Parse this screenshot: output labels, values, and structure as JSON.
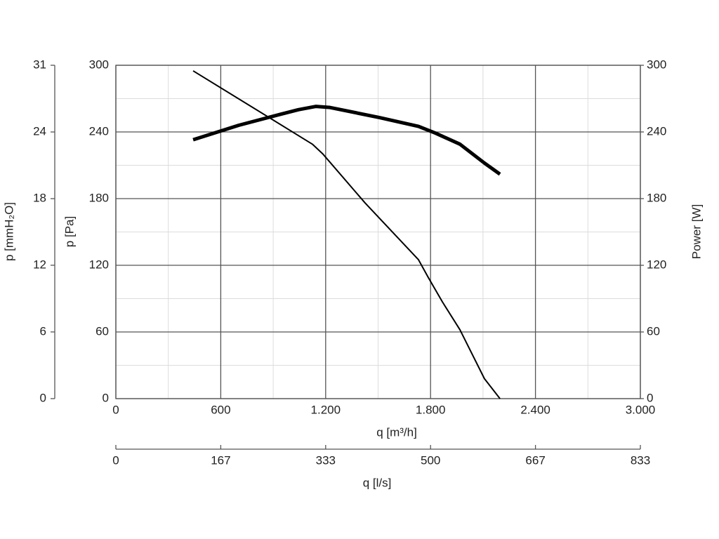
{
  "chart_data": {
    "type": "line",
    "xlabel": "q [m³/h]",
    "ylabel": "p [Pa]",
    "y2label": "Power [W]",
    "y3label": "p [mmH₂O]",
    "x2label": "q [l/s]",
    "xlim": [
      0,
      3000
    ],
    "xticks": [
      0,
      600,
      {
        "value": 1200,
        "label": "1.200"
      },
      {
        "value": 1800,
        "label": "1.800"
      },
      {
        "value": 2400,
        "label": "2.400"
      },
      {
        "value": 3000,
        "label": "3.000"
      }
    ],
    "xminorticks": [
      300,
      900,
      1500,
      2100,
      2700
    ],
    "ylim": [
      0,
      300
    ],
    "yticks": [
      0,
      60,
      120,
      180,
      240,
      300
    ],
    "yminorticks": [
      30,
      90,
      150,
      210,
      270
    ],
    "y2lim": [
      0,
      300
    ],
    "y2ticks": [
      0,
      60,
      120,
      180,
      240,
      300
    ],
    "y3lim": [
      0,
      30.59
    ],
    "y3ticks": [
      0,
      {
        "value": 6.12,
        "label": "6"
      },
      {
        "value": 12.24,
        "label": "12"
      },
      {
        "value": 18.35,
        "label": "18"
      },
      {
        "value": 24.47,
        "label": "24"
      },
      {
        "value": 30.59,
        "label": "31"
      }
    ],
    "x2lim": [
      0,
      833.33
    ],
    "x2ticks": [
      0,
      {
        "value": 166.67,
        "label": "167"
      },
      {
        "value": 333.33,
        "label": "333"
      },
      {
        "value": 500,
        "label": "500"
      },
      {
        "value": 666.67,
        "label": "667"
      },
      {
        "value": 833.33,
        "label": "833"
      }
    ],
    "grid": true,
    "series": [
      {
        "color": "#000000",
        "width": 2,
        "x": [
          442,
          1124,
          1185,
          1426,
          1731,
          1787,
          1868,
          1968,
          2108,
          2197
        ],
        "values": [
          295,
          229,
          220,
          176,
          125,
          109,
          87,
          62,
          18,
          0
        ]
      },
      {
        "color": "#000000",
        "width": 5,
        "axis": "y2",
        "x": [
          442,
          703,
          944,
          1044,
          1145,
          1225,
          1506,
          1731,
          1827,
          1968,
          2108,
          2197
        ],
        "values": [
          233,
          246,
          256,
          260,
          263,
          262,
          253,
          245,
          239,
          229,
          212,
          202
        ]
      }
    ]
  }
}
